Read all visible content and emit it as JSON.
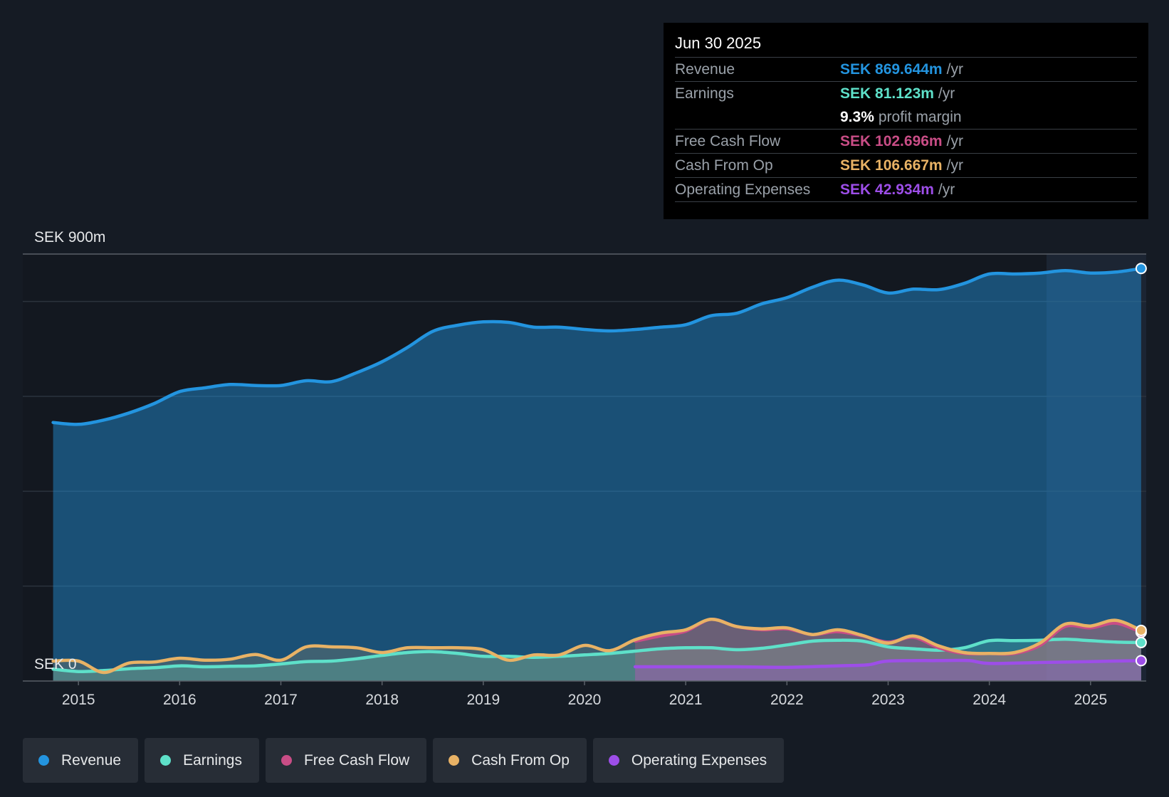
{
  "colors": {
    "revenue": "#2394df",
    "earnings": "#5ee0c9",
    "free_cash_flow": "#c94d86",
    "cash_from_op": "#e8b265",
    "operating_expenses": "#9d4ee8"
  },
  "tooltip": {
    "date": "Jun 30 2025",
    "rows": [
      {
        "label": "Revenue",
        "value": "SEK 869.644m",
        "unit": "/yr"
      },
      {
        "label": "Earnings",
        "value": "SEK 81.123m",
        "unit": "/yr"
      },
      {
        "label": "",
        "value": "9.3%",
        "unit": "profit margin"
      },
      {
        "label": "Free Cash Flow",
        "value": "SEK 102.696m",
        "unit": "/yr"
      },
      {
        "label": "Cash From Op",
        "value": "SEK 106.667m",
        "unit": "/yr"
      },
      {
        "label": "Operating Expenses",
        "value": "SEK 42.934m",
        "unit": "/yr"
      }
    ]
  },
  "legend": [
    {
      "label": "Revenue",
      "color": "#2394df"
    },
    {
      "label": "Earnings",
      "color": "#5ee0c9"
    },
    {
      "label": "Free Cash Flow",
      "color": "#c94d86"
    },
    {
      "label": "Cash From Op",
      "color": "#e8b265"
    },
    {
      "label": "Operating Expenses",
      "color": "#9d4ee8"
    }
  ],
  "chart_data": {
    "type": "area",
    "title": "",
    "xlabel": "",
    "ylabel": "",
    "y_top_label": "SEK 900m",
    "y_bottom_label": "SEK 0",
    "ylim": [
      0,
      900
    ],
    "xlim": [
      2014.45,
      2025.55
    ],
    "x_ticks": [
      2015,
      2016,
      2017,
      2018,
      2019,
      2020,
      2021,
      2022,
      2023,
      2024,
      2025
    ],
    "x_tick_labels": [
      "2015",
      "2016",
      "2017",
      "2018",
      "2019",
      "2020",
      "2021",
      "2022",
      "2023",
      "2024",
      "2025"
    ],
    "grid_y": [
      200,
      400,
      600,
      800
    ],
    "series": [
      {
        "name": "Revenue",
        "key": "revenue",
        "points": [
          [
            2014.75,
            545
          ],
          [
            2015.0,
            541
          ],
          [
            2015.25,
            550
          ],
          [
            2015.5,
            565
          ],
          [
            2015.75,
            585
          ],
          [
            2016.0,
            610
          ],
          [
            2016.25,
            618
          ],
          [
            2016.5,
            625
          ],
          [
            2016.75,
            623
          ],
          [
            2017.0,
            623
          ],
          [
            2017.25,
            633
          ],
          [
            2017.5,
            631
          ],
          [
            2017.75,
            650
          ],
          [
            2018.0,
            673
          ],
          [
            2018.25,
            703
          ],
          [
            2018.5,
            737
          ],
          [
            2018.75,
            750
          ],
          [
            2019.0,
            757
          ],
          [
            2019.25,
            756
          ],
          [
            2019.5,
            746
          ],
          [
            2019.75,
            746
          ],
          [
            2020.0,
            741
          ],
          [
            2020.25,
            738
          ],
          [
            2020.5,
            741
          ],
          [
            2020.75,
            746
          ],
          [
            2021.0,
            751
          ],
          [
            2021.25,
            770
          ],
          [
            2021.5,
            775
          ],
          [
            2021.75,
            795
          ],
          [
            2022.0,
            808
          ],
          [
            2022.25,
            830
          ],
          [
            2022.5,
            845
          ],
          [
            2022.75,
            835
          ],
          [
            2023.0,
            818
          ],
          [
            2023.25,
            826
          ],
          [
            2023.5,
            825
          ],
          [
            2023.75,
            838
          ],
          [
            2024.0,
            858
          ],
          [
            2024.25,
            858
          ],
          [
            2024.5,
            860
          ],
          [
            2024.75,
            865
          ],
          [
            2025.0,
            860
          ],
          [
            2025.25,
            862
          ],
          [
            2025.5,
            869.644
          ]
        ]
      },
      {
        "name": "Earnings",
        "key": "earnings",
        "points": [
          [
            2014.75,
            25
          ],
          [
            2015.0,
            20
          ],
          [
            2015.25,
            22
          ],
          [
            2015.5,
            26
          ],
          [
            2015.75,
            28
          ],
          [
            2016.0,
            32
          ],
          [
            2016.25,
            30
          ],
          [
            2016.5,
            31
          ],
          [
            2016.75,
            32
          ],
          [
            2017.0,
            36
          ],
          [
            2017.25,
            41
          ],
          [
            2017.5,
            42
          ],
          [
            2017.75,
            47
          ],
          [
            2018.0,
            54
          ],
          [
            2018.25,
            60
          ],
          [
            2018.5,
            62
          ],
          [
            2018.75,
            58
          ],
          [
            2019.0,
            52
          ],
          [
            2019.25,
            52
          ],
          [
            2019.5,
            50
          ],
          [
            2019.75,
            52
          ],
          [
            2020.0,
            55
          ],
          [
            2020.25,
            58
          ],
          [
            2020.5,
            63
          ],
          [
            2020.75,
            68
          ],
          [
            2021.0,
            70
          ],
          [
            2021.25,
            70
          ],
          [
            2021.5,
            66
          ],
          [
            2021.75,
            69
          ],
          [
            2022.0,
            76
          ],
          [
            2022.25,
            84
          ],
          [
            2022.5,
            86
          ],
          [
            2022.75,
            84
          ],
          [
            2023.0,
            72
          ],
          [
            2023.25,
            68
          ],
          [
            2023.5,
            65
          ],
          [
            2023.75,
            70
          ],
          [
            2024.0,
            85
          ],
          [
            2024.25,
            85
          ],
          [
            2024.5,
            86
          ],
          [
            2024.75,
            88
          ],
          [
            2025.0,
            85
          ],
          [
            2025.25,
            82
          ],
          [
            2025.5,
            81.123
          ]
        ]
      },
      {
        "name": "Free Cash Flow",
        "key": "free_cash_flow",
        "points": [
          [
            2020.5,
            84
          ],
          [
            2020.75,
            95
          ],
          [
            2021.0,
            105
          ],
          [
            2021.25,
            130
          ],
          [
            2021.5,
            115
          ],
          [
            2021.75,
            108
          ],
          [
            2022.0,
            110
          ],
          [
            2022.25,
            98
          ],
          [
            2022.5,
            104
          ],
          [
            2022.75,
            95
          ],
          [
            2023.0,
            82
          ],
          [
            2023.25,
            92
          ],
          [
            2023.5,
            70
          ],
          [
            2023.75,
            58
          ],
          [
            2024.0,
            58
          ],
          [
            2024.25,
            58
          ],
          [
            2024.5,
            75
          ],
          [
            2024.75,
            115
          ],
          [
            2025.0,
            112
          ],
          [
            2025.25,
            122
          ],
          [
            2025.5,
            102.696
          ]
        ]
      },
      {
        "name": "Cash From Op",
        "key": "cash_from_op",
        "points": [
          [
            2014.75,
            42
          ],
          [
            2015.0,
            42
          ],
          [
            2015.25,
            18
          ],
          [
            2015.5,
            38
          ],
          [
            2015.75,
            40
          ],
          [
            2016.0,
            48
          ],
          [
            2016.25,
            44
          ],
          [
            2016.5,
            46
          ],
          [
            2016.75,
            56
          ],
          [
            2017.0,
            44
          ],
          [
            2017.25,
            72
          ],
          [
            2017.5,
            72
          ],
          [
            2017.75,
            70
          ],
          [
            2018.0,
            60
          ],
          [
            2018.25,
            70
          ],
          [
            2018.5,
            70
          ],
          [
            2018.75,
            70
          ],
          [
            2019.0,
            66
          ],
          [
            2019.25,
            44
          ],
          [
            2019.5,
            55
          ],
          [
            2019.75,
            55
          ],
          [
            2020.0,
            75
          ],
          [
            2020.25,
            64
          ],
          [
            2020.5,
            87
          ],
          [
            2020.75,
            101
          ],
          [
            2021.0,
            108
          ],
          [
            2021.25,
            130
          ],
          [
            2021.5,
            115
          ],
          [
            2021.75,
            110
          ],
          [
            2022.0,
            112
          ],
          [
            2022.25,
            98
          ],
          [
            2022.5,
            108
          ],
          [
            2022.75,
            96
          ],
          [
            2023.0,
            80
          ],
          [
            2023.25,
            95
          ],
          [
            2023.5,
            74
          ],
          [
            2023.75,
            60
          ],
          [
            2024.0,
            58
          ],
          [
            2024.25,
            60
          ],
          [
            2024.5,
            80
          ],
          [
            2024.75,
            120
          ],
          [
            2025.0,
            116
          ],
          [
            2025.25,
            128
          ],
          [
            2025.5,
            106.667
          ]
        ]
      },
      {
        "name": "Operating Expenses",
        "key": "operating_expenses",
        "points": [
          [
            2020.5,
            30
          ],
          [
            2021.0,
            30
          ],
          [
            2021.5,
            30
          ],
          [
            2022.0,
            29
          ],
          [
            2022.5,
            32
          ],
          [
            2022.8,
            34
          ],
          [
            2023.0,
            42
          ],
          [
            2023.5,
            43
          ],
          [
            2023.8,
            43
          ],
          [
            2024.0,
            37
          ],
          [
            2024.5,
            39
          ],
          [
            2025.0,
            41
          ],
          [
            2025.5,
            42.934
          ]
        ]
      }
    ]
  }
}
